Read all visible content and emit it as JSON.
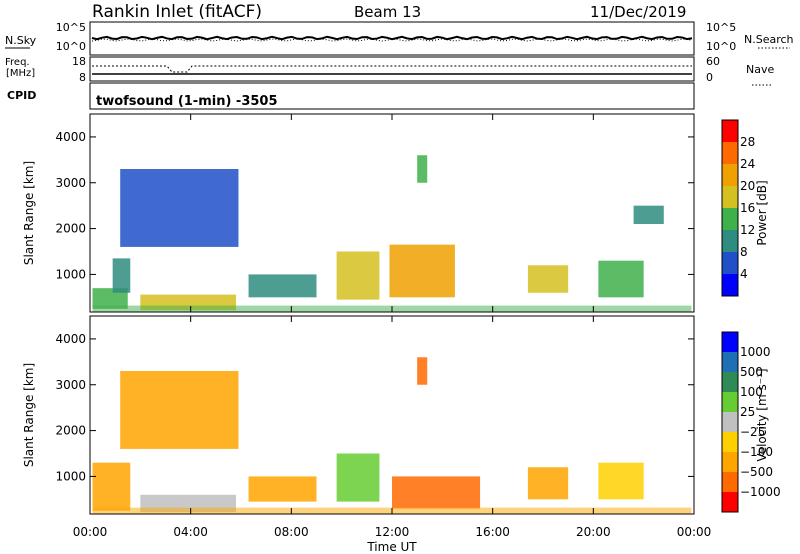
{
  "header": {
    "station": "Rankin Inlet (fitACF)",
    "beam": "Beam 13",
    "date": "11/Dec/2019"
  },
  "noise_panel": {
    "left_label": "N.Sky",
    "left_ticks": [
      "10^5",
      "10^0"
    ],
    "right_label": "N.Search",
    "right_ticks": [
      "10^5",
      "10^0"
    ]
  },
  "freq_panel": {
    "left_label_1": "Freq.",
    "left_label_2": "[MHz]",
    "left_ticks": [
      "18",
      "8"
    ],
    "right_label": "Nave",
    "right_ticks": [
      "60",
      "0"
    ]
  },
  "cpid_panel": {
    "label": "CPID",
    "program": "twofsound (1-min) -3505"
  },
  "colors": {
    "power": [
      "#0000ff",
      "#2050c8",
      "#2e8c80",
      "#3fb04a",
      "#d4c020",
      "#f0a000",
      "#ff6a00",
      "#ff0000"
    ],
    "velocity": [
      "#ff0000",
      "#ff6a00",
      "#ffa500",
      "#ffd000",
      "#c0c0c0",
      "#66cc33",
      "#2e8b57",
      "#1e6fb4",
      "#0000ff"
    ]
  },
  "chart_data": [
    {
      "type": "heatmap",
      "name": "power",
      "ylabel": "Slant Range [km]",
      "y_ticks": [
        "4000",
        "3000",
        "2000",
        "1000"
      ],
      "ylim": [
        180,
        4500
      ],
      "xlim_hours": [
        0,
        24
      ],
      "colorbar": {
        "label": "Power [dB]",
        "ticks": [
          "28",
          "24",
          "20",
          "16",
          "12",
          "8",
          "4"
        ],
        "range": [
          0,
          32
        ]
      },
      "regions": [
        {
          "t0": 0.1,
          "t1": 1.5,
          "r0": 250,
          "r1": 700,
          "value": 14
        },
        {
          "t0": 0.9,
          "t1": 1.6,
          "r0": 600,
          "r1": 1350,
          "value": 10
        },
        {
          "t0": 2.0,
          "t1": 5.8,
          "r0": 220,
          "r1": 560,
          "value": 16
        },
        {
          "t0": 1.2,
          "t1": 5.9,
          "r0": 1600,
          "r1": 3300,
          "value": 6
        },
        {
          "t0": 6.3,
          "t1": 9.0,
          "r0": 500,
          "r1": 1000,
          "value": 10
        },
        {
          "t0": 9.8,
          "t1": 11.5,
          "r0": 450,
          "r1": 1500,
          "value": 18
        },
        {
          "t0": 11.9,
          "t1": 14.5,
          "r0": 500,
          "r1": 1650,
          "value": 20
        },
        {
          "t0": 13.0,
          "t1": 13.4,
          "r0": 3000,
          "r1": 3600,
          "value": 12
        },
        {
          "t0": 17.4,
          "t1": 19.0,
          "r0": 600,
          "r1": 1200,
          "value": 16
        },
        {
          "t0": 20.2,
          "t1": 22.0,
          "r0": 500,
          "r1": 1300,
          "value": 14
        },
        {
          "t0": 21.6,
          "t1": 22.8,
          "r0": 2100,
          "r1": 2500,
          "value": 8
        }
      ]
    },
    {
      "type": "heatmap",
      "name": "velocity",
      "ylabel": "Slant Range [km]",
      "xlabel": "Time UT",
      "x_ticks": [
        "00:00",
        "04:00",
        "08:00",
        "12:00",
        "16:00",
        "20:00",
        "00:00"
      ],
      "y_ticks": [
        "4000",
        "3000",
        "2000",
        "1000"
      ],
      "ylim": [
        180,
        4500
      ],
      "xlim_hours": [
        0,
        24
      ],
      "colorbar": {
        "label": "Velocity [m s⁻¹]",
        "ticks": [
          "1000",
          "500",
          "100",
          "25",
          "−25",
          "−100",
          "−500",
          "−1000"
        ]
      },
      "regions": [
        {
          "t0": 0.1,
          "t1": 1.6,
          "r0": 250,
          "r1": 1300,
          "value": -100
        },
        {
          "t0": 2.0,
          "t1": 5.8,
          "r0": 220,
          "r1": 600,
          "value": 25
        },
        {
          "t0": 1.2,
          "t1": 5.9,
          "r0": 1600,
          "r1": 3300,
          "value": -100
        },
        {
          "t0": 6.3,
          "t1": 9.0,
          "r0": 450,
          "r1": 1000,
          "value": -100
        },
        {
          "t0": 9.8,
          "t1": 11.5,
          "r0": 450,
          "r1": 1500,
          "value": 100
        },
        {
          "t0": 12.0,
          "t1": 15.5,
          "r0": 300,
          "r1": 1000,
          "value": -500
        },
        {
          "t0": 13.0,
          "t1": 13.4,
          "r0": 3000,
          "r1": 3600,
          "value": -500
        },
        {
          "t0": 17.4,
          "t1": 19.0,
          "r0": 500,
          "r1": 1200,
          "value": -100
        },
        {
          "t0": 20.2,
          "t1": 22.0,
          "r0": 500,
          "r1": 1300,
          "value": -25
        }
      ]
    }
  ]
}
